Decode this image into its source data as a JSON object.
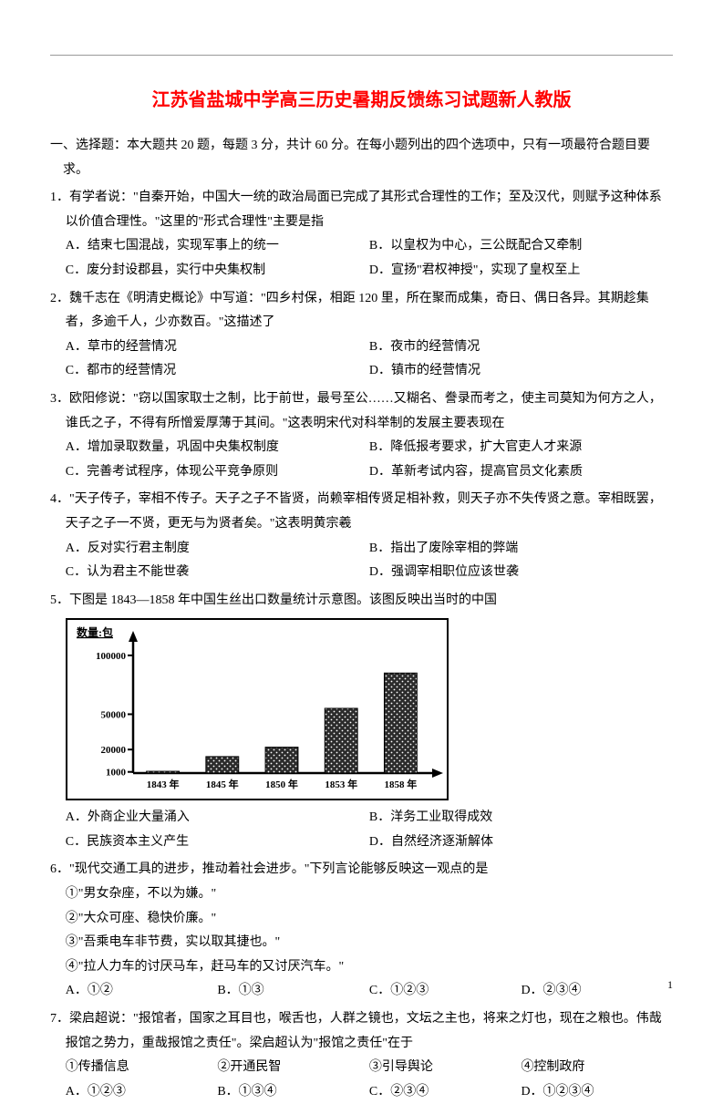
{
  "title": "江苏省盐城中学高三历史暑期反馈练习试题新人教版",
  "section_header": "一、选择题：本大题共 20 题，每题 3 分，共计 60 分。在每小题列出的四个选项中，只有一项最符合题目要求。",
  "q1": {
    "text": "1．有学者说：\"自秦开始，中国大一统的政治局面已完成了其形式合理性的工作；至及汉代，则赋予这种体系以价值合理性。\"这里的\"形式合理性\"主要是指",
    "optA": "A．结束七国混战，实现军事上的统一",
    "optB": "B．以皇权为中心，三公既配合又牵制",
    "optC": "C．废分封设郡县，实行中央集权制",
    "optD": "D．宣扬\"君权神授\"，实现了皇权至上"
  },
  "q2": {
    "text": "2．魏千志在《明清史概论》中写道：\"四乡村保，相距 120 里，所在聚而成集，奇日、偶日各异。其期趁集者，多逾千人，少亦数百。\"这描述了",
    "optA": "A．草市的经营情况",
    "optB": "B．夜市的经营情况",
    "optC": "C．都市的经营情况",
    "optD": "D．镇市的经营情况"
  },
  "q3": {
    "text": "3．欧阳修说：\"窃以国家取士之制，比于前世，最号至公……又糊名、誊录而考之，使主司莫知为何方之人，谁氏之子，不得有所憎爱厚薄于其间。\"这表明宋代对科举制的发展主要表现在",
    "optA": "A．增加录取数量，巩固中央集权制度",
    "optB": "B．降低报考要求，扩大官吏人才来源",
    "optC": "C．完善考试程序，体现公平竞争原则",
    "optD": "D．革新考试内容，提高官员文化素质"
  },
  "q4": {
    "text": "4．\"天子传子，宰相不传子。天子之子不皆贤，尚赖宰相传贤足相补救，则天子亦不失传贤之意。宰相既罢，天子之子一不贤，更无与为贤者矣。\"这表明黄宗羲",
    "optA": "A．反对实行君主制度",
    "optB": "B．指出了废除宰相的弊端",
    "optC": "C．认为君主不能世袭",
    "optD": "D．强调宰相职位应该世袭"
  },
  "q5": {
    "text": "5．下图是 1843—1858 年中国生丝出口数量统计示意图。该图反映出当时的中国",
    "optA": "A．外商企业大量涌入",
    "optB": "B．洋务工业取得成效",
    "optC": "C．民族资本主义产生",
    "optD": "D．自然经济逐渐解体"
  },
  "q6": {
    "text": "6．\"现代交通工具的进步，推动着社会进步。\"下列言论能够反映这一观点的是",
    "s1": "①\"男女杂座，不以为嫌。\"",
    "s2": "②\"大众可座、稳快价廉。\"",
    "s3": "③\"吾乘电车非节费，实以取其捷也。\"",
    "s4": "④\"拉人力车的讨厌马车，赶马车的又讨厌汽车。\"",
    "optA": "A．①②",
    "optB": "B．①③",
    "optC": "C．①②③",
    "optD": "D．②③④"
  },
  "q7": {
    "text": "7．梁启超说：\"报馆者，国家之耳目也，喉舌也，人群之镜也，文坛之主也，将来之灯也，现在之粮也。伟哉报馆之势力，重哉报馆之责任\"。梁启超认为\"报馆之责任\"在于",
    "s1": "①传播信息",
    "s2": "②开通民智",
    "s3": "③引导舆论",
    "s4": "④控制政府",
    "optA": "A．①②③",
    "optB": "B．①③④",
    "optC": "C．②③④",
    "optD": "D．①②③④"
  },
  "chart": {
    "type": "bar",
    "y_axis_label": "数量:包",
    "categories": [
      "1843 年",
      "1845 年",
      "1850 年",
      "1853 年",
      "1858 年"
    ],
    "values": [
      1500,
      14000,
      22000,
      55000,
      85000
    ],
    "y_ticks": [
      1000,
      20000,
      50000,
      100000
    ],
    "y_tick_labels": [
      "1000",
      "20000",
      "50000",
      "100000"
    ],
    "ylim": [
      0,
      110000
    ],
    "bar_color": "#2b2b2b",
    "axis_color": "#000000",
    "bg_color": "#ffffff",
    "axis_fontsize": 11,
    "label_fontsize": 12,
    "bar_width_ratio": 0.55
  },
  "page_number": "1"
}
